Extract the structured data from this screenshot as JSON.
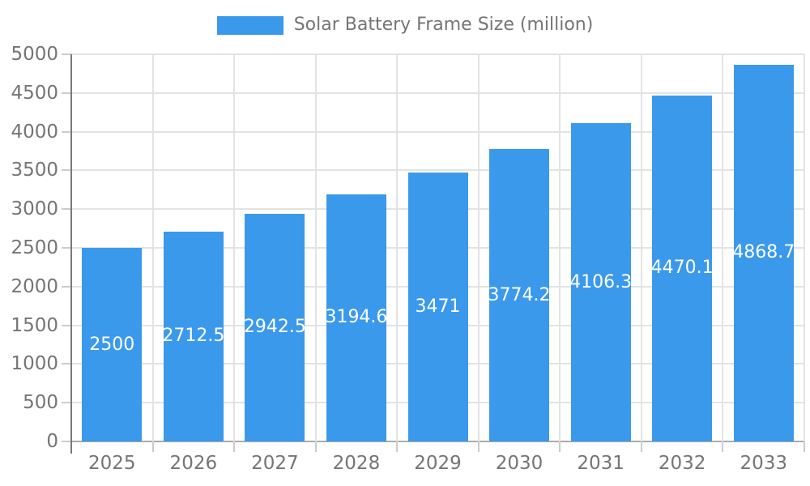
{
  "chart_data": {
    "type": "bar",
    "title": "Solar Battery Frame Size (million)",
    "categories": [
      "2025",
      "2026",
      "2027",
      "2028",
      "2029",
      "2030",
      "2031",
      "2032",
      "2033"
    ],
    "values": [
      2500,
      2712.5,
      2942.5,
      3194.6,
      3471,
      3774.2,
      4106.3,
      4470.1,
      4868.7
    ],
    "value_labels": [
      "2500",
      "2712.5",
      "2942.5",
      "3194.6",
      "3471",
      "3774.2",
      "4106.3",
      "4470.1",
      "4868.7"
    ],
    "xlabel": "",
    "ylabel": "",
    "ylim": [
      0,
      5000
    ],
    "yticks": [
      0,
      500,
      1000,
      1500,
      2000,
      2500,
      3000,
      3500,
      4000,
      4500,
      5000
    ],
    "grid": true,
    "legend_position": "top-center",
    "colors": {
      "bar": "#3B99EC",
      "axis_text": "#757575",
      "legend_text": "#757575",
      "value_text": "#FFFFFF",
      "grid_line": "#E3E3E3",
      "axis_line": "#7A7A7A",
      "baseline": "#ABABAB",
      "tick": "#CCCCCC",
      "background": "#FFFFFF"
    }
  }
}
